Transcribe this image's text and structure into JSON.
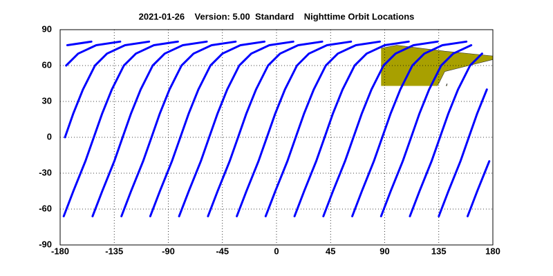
{
  "chart_data": {
    "type": "map-tracks",
    "title": "2021-01-26    Version: 5.00  Standard    Nighttime Orbit Locations",
    "xlim": [
      -180,
      180
    ],
    "ylim": [
      -90,
      90
    ],
    "xticks": [
      -180,
      -135,
      -90,
      -45,
      0,
      45,
      90,
      135,
      180
    ],
    "yticks": [
      -90,
      -60,
      -30,
      0,
      30,
      60,
      90
    ],
    "grid": true,
    "land_color": "#a8a000",
    "series": [
      {
        "color": "#0000ff",
        "x": [
          -177,
          -169,
          -159,
          -152,
          -145,
          -137,
          -127,
          -117,
          -102,
          -82
        ],
        "y": [
          -66,
          -45,
          -20,
          0,
          20,
          40,
          60,
          70,
          77,
          80
        ]
      },
      {
        "color": "#0000ff",
        "x": [
          -153,
          -145,
          -135,
          -128,
          -121,
          -113,
          -103,
          -93,
          -78,
          -58
        ],
        "y": [
          -66,
          -45,
          -20,
          0,
          20,
          40,
          60,
          70,
          77,
          80
        ]
      },
      {
        "color": "#0000ff",
        "x": [
          -129,
          -121,
          -111,
          -104,
          -97,
          -89,
          -79,
          -69,
          -54,
          -34
        ],
        "y": [
          -66,
          -45,
          -20,
          0,
          20,
          40,
          60,
          70,
          77,
          80
        ]
      },
      {
        "color": "#0000ff",
        "x": [
          -105,
          -97,
          -87,
          -80,
          -73,
          -65,
          -55,
          -45,
          -30,
          -10
        ],
        "y": [
          -66,
          -45,
          -20,
          0,
          20,
          40,
          60,
          70,
          77,
          80
        ]
      },
      {
        "color": "#0000ff",
        "x": [
          -81,
          -73,
          -63,
          -56,
          -49,
          -41,
          -31,
          -21,
          -6,
          14
        ],
        "y": [
          -66,
          -45,
          -20,
          0,
          20,
          40,
          60,
          70,
          77,
          80
        ]
      },
      {
        "color": "#0000ff",
        "x": [
          -57,
          -49,
          -39,
          -32,
          -25,
          -17,
          -7,
          3,
          18,
          38
        ],
        "y": [
          -66,
          -45,
          -20,
          0,
          20,
          40,
          60,
          70,
          77,
          80
        ]
      },
      {
        "color": "#0000ff",
        "x": [
          -33,
          -25,
          -15,
          -8,
          -1,
          7,
          17,
          27,
          42,
          62
        ],
        "y": [
          -66,
          -45,
          -20,
          0,
          20,
          40,
          60,
          70,
          77,
          80
        ]
      },
      {
        "color": "#0000ff",
        "x": [
          -9,
          -1,
          9,
          16,
          23,
          31,
          41,
          51,
          66,
          86
        ],
        "y": [
          -66,
          -45,
          -20,
          0,
          20,
          40,
          60,
          70,
          77,
          80
        ]
      },
      {
        "color": "#0000ff",
        "x": [
          15,
          23,
          33,
          40,
          47,
          55,
          65,
          75,
          90,
          110
        ],
        "y": [
          -66,
          -45,
          -20,
          0,
          20,
          40,
          60,
          70,
          77,
          80
        ]
      },
      {
        "color": "#0000ff",
        "x": [
          39,
          47,
          57,
          64,
          71,
          79,
          89,
          99,
          114,
          134
        ],
        "y": [
          -66,
          -45,
          -20,
          0,
          20,
          40,
          60,
          70,
          77,
          80
        ]
      },
      {
        "color": "#0000ff",
        "x": [
          63,
          71,
          81,
          88,
          95,
          103,
          113,
          123,
          138,
          158
        ],
        "y": [
          -66,
          -45,
          -20,
          0,
          20,
          40,
          60,
          70,
          77,
          80
        ]
      },
      {
        "color": "#0000ff",
        "x": [
          87,
          95,
          105,
          112,
          119,
          127,
          137,
          147,
          162
        ],
        "y": [
          -66,
          -45,
          -20,
          0,
          20,
          40,
          60,
          70,
          77
        ]
      },
      {
        "color": "#0000ff",
        "x": [
          111,
          119,
          129,
          136,
          143,
          151,
          161,
          171,
          null,
          -174,
          -154
        ],
        "y": [
          -66,
          -45,
          -20,
          0,
          20,
          40,
          60,
          70,
          null,
          77,
          80
        ]
      },
      {
        "color": "#0000ff",
        "x": [
          135,
          143,
          153,
          160,
          167,
          175,
          null,
          -175,
          -165,
          -150,
          -130
        ],
        "y": [
          -66,
          -45,
          -20,
          0,
          20,
          40,
          null,
          60,
          70,
          77,
          80
        ]
      },
      {
        "color": "#0000ff",
        "x": [
          159,
          167,
          177,
          null,
          -176,
          -169,
          -161,
          -151,
          -141,
          -126,
          -106
        ],
        "y": [
          -66,
          -45,
          -20,
          null,
          0,
          20,
          40,
          60,
          70,
          77,
          80
        ]
      }
    ]
  }
}
